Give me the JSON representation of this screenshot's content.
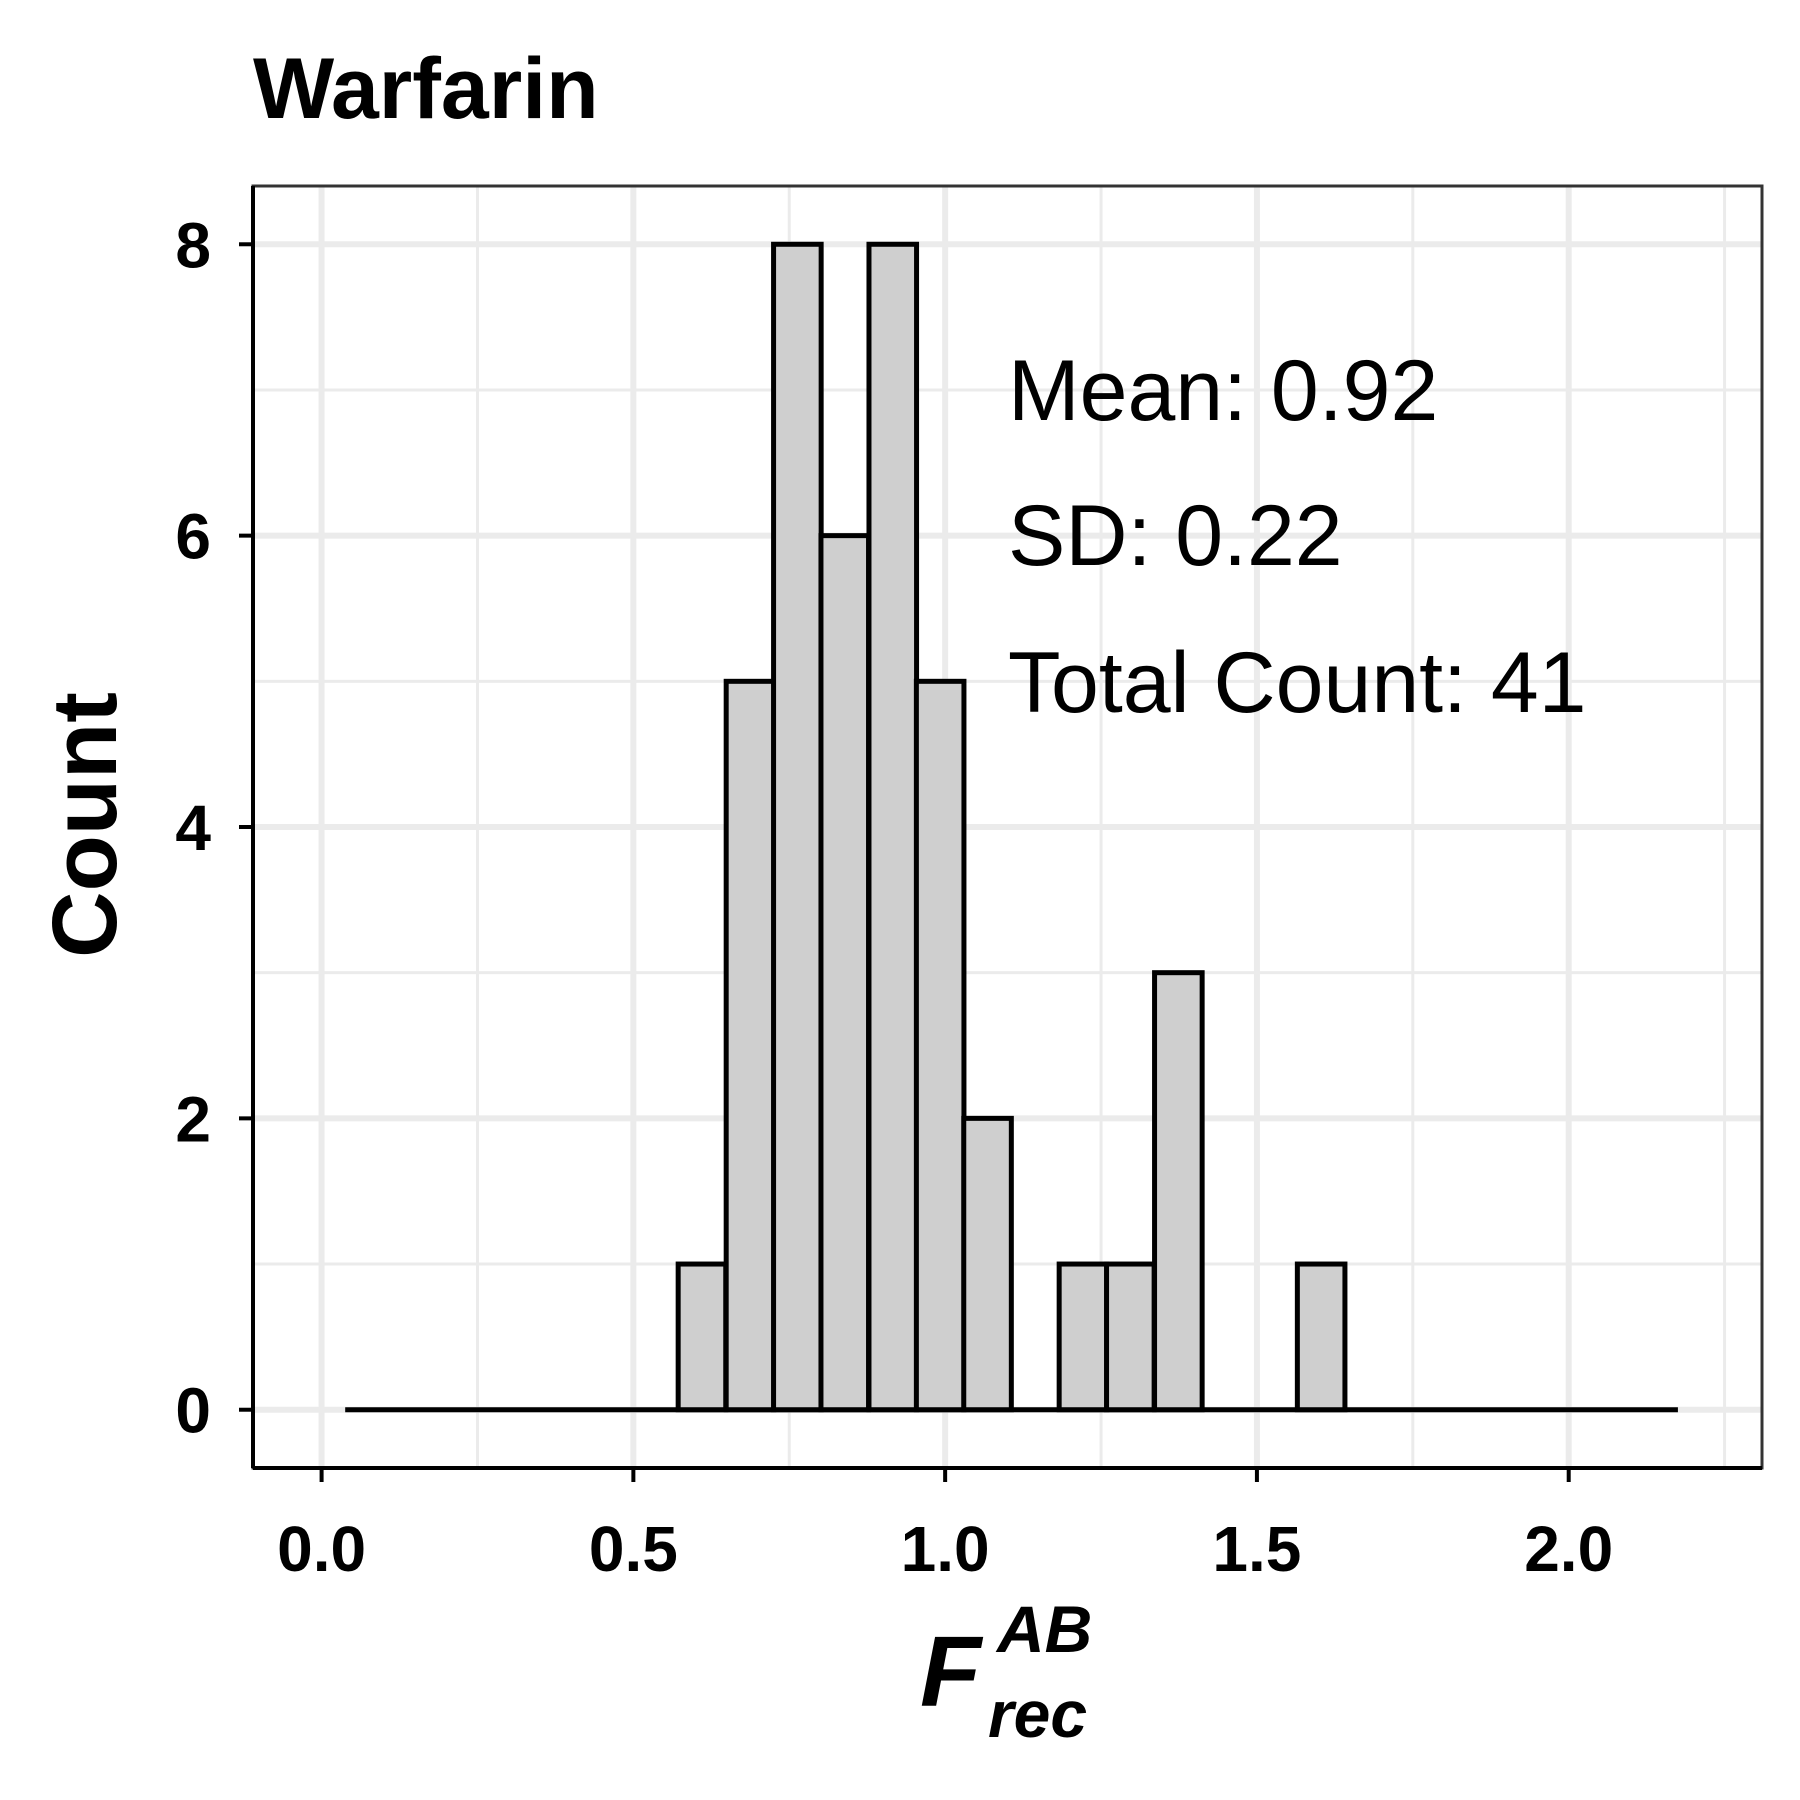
{
  "chart_data": {
    "type": "bar",
    "title": "Warfarin",
    "xlabel": "F",
    "xlabel_superscript": "AB",
    "xlabel_subscript": "rec",
    "ylabel": "Count",
    "xlim": [
      -0.11,
      2.31
    ],
    "ylim": [
      -0.4,
      8.4
    ],
    "x_ticks": [
      "0.0",
      "0.5",
      "1.0",
      "1.5",
      "2.0"
    ],
    "x_tick_values": [
      0.0,
      0.5,
      1.0,
      1.5,
      2.0
    ],
    "y_ticks": [
      "0",
      "2",
      "4",
      "6",
      "8"
    ],
    "y_tick_values": [
      0,
      2,
      4,
      6,
      8
    ],
    "bin_width": 0.0763,
    "bin_centers": [
      0.076,
      0.152,
      0.229,
      0.305,
      0.381,
      0.458,
      0.534,
      0.61,
      0.687,
      0.763,
      0.839,
      0.916,
      0.992,
      1.068,
      1.145,
      1.221,
      1.297,
      1.374,
      1.45,
      1.526,
      1.603,
      1.679,
      1.755,
      1.832,
      1.908,
      1.984,
      2.061,
      2.137
    ],
    "values": [
      0,
      0,
      0,
      0,
      0,
      0,
      0,
      1,
      5,
      8,
      6,
      8,
      5,
      2,
      0,
      1,
      1,
      3,
      0,
      0,
      1,
      0,
      0,
      0,
      0,
      0,
      0,
      0
    ],
    "grid": true,
    "annotations": {
      "mean": "Mean: 0.92",
      "sd": "SD: 0.22",
      "total": "Total Count: 41"
    }
  }
}
